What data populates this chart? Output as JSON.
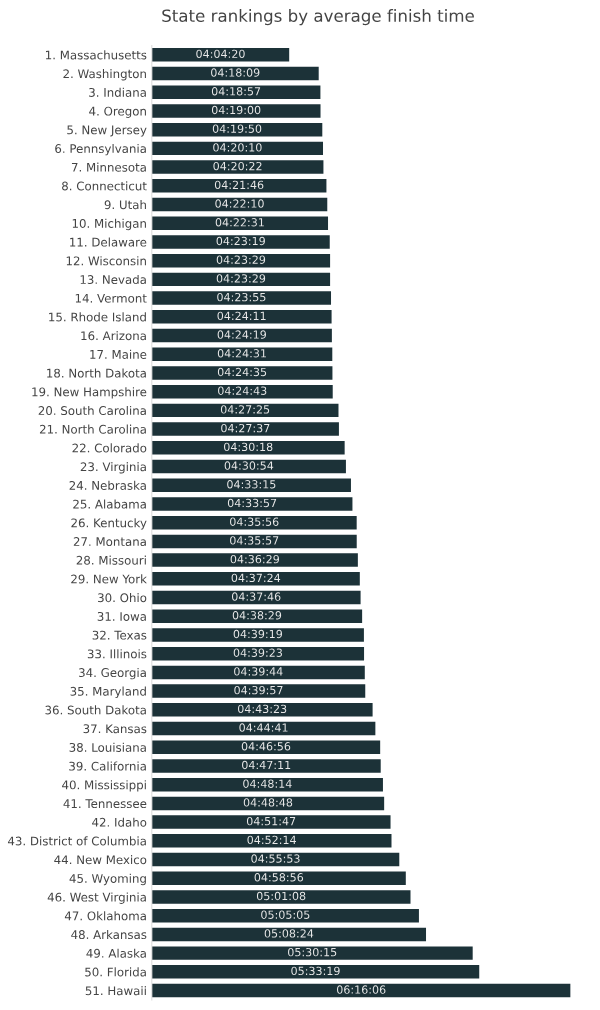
{
  "chart_data": {
    "type": "bar",
    "orientation": "horizontal",
    "title": "State rankings by average finish time",
    "categories": [
      "1. Massachusetts",
      "2. Washington",
      "3. Indiana",
      "4. Oregon",
      "5. New Jersey",
      "6. Pennsylvania",
      "7. Minnesota",
      "8. Connecticut",
      "9. Utah",
      "10. Michigan",
      "11. Delaware",
      "12. Wisconsin",
      "13. Nevada",
      "14. Vermont",
      "15. Rhode Island",
      "16. Arizona",
      "17. Maine",
      "18. North Dakota",
      "19. New Hampshire",
      "20. South Carolina",
      "21. North Carolina",
      "22. Colorado",
      "23. Virginia",
      "24. Nebraska",
      "25. Alabama",
      "26. Kentucky",
      "27. Montana",
      "28. Missouri",
      "29. New York",
      "30. Ohio",
      "31. Iowa",
      "32. Texas",
      "33. Illinois",
      "34. Georgia",
      "35. Maryland",
      "36. South Dakota",
      "37. Kansas",
      "38. Louisiana",
      "39. California",
      "40. Mississippi",
      "41. Tennessee",
      "42. Idaho",
      "43. District of Columbia",
      "44. New Mexico",
      "45. Wyoming",
      "46. West Virginia",
      "47. Oklahoma",
      "48. Arkansas",
      "49. Alaska",
      "50. Florida",
      "51. Hawaii"
    ],
    "values": [
      4.0722,
      4.3025,
      4.3158,
      4.3167,
      4.3306,
      4.3361,
      4.3394,
      4.3628,
      4.3694,
      4.3753,
      4.3886,
      4.3914,
      4.3914,
      4.3986,
      4.4031,
      4.4053,
      4.4086,
      4.4097,
      4.4119,
      4.4569,
      4.4603,
      4.505,
      4.515,
      4.5542,
      4.5658,
      4.5989,
      4.5992,
      4.6081,
      4.6233,
      4.6294,
      4.6414,
      4.6553,
      4.6564,
      4.6622,
      4.6658,
      4.7231,
      4.7447,
      4.7822,
      4.7864,
      4.8039,
      4.8133,
      4.8631,
      4.8706,
      4.9314,
      4.9822,
      5.0189,
      5.0847,
      5.14,
      5.5042,
      5.5553,
      6.2683
    ],
    "value_labels": [
      "04:04:20",
      "04:18:09",
      "04:18:57",
      "04:19:00",
      "04:19:50",
      "04:20:10",
      "04:20:22",
      "04:21:46",
      "04:22:10",
      "04:22:31",
      "04:23:19",
      "04:23:29",
      "04:23:29",
      "04:23:55",
      "04:24:11",
      "04:24:19",
      "04:24:31",
      "04:24:35",
      "04:24:43",
      "04:27:25",
      "04:27:37",
      "04:30:18",
      "04:30:54",
      "04:33:15",
      "04:33:57",
      "04:35:56",
      "04:35:57",
      "04:36:29",
      "04:37:24",
      "04:37:46",
      "04:38:29",
      "04:39:19",
      "04:39:23",
      "04:39:44",
      "04:39:57",
      "04:43:23",
      "04:44:41",
      "04:46:56",
      "04:47:11",
      "04:48:14",
      "04:48:48",
      "04:51:47",
      "04:52:14",
      "04:55:53",
      "04:58:56",
      "05:01:08",
      "05:05:05",
      "05:08:24",
      "05:30:15",
      "05:33:19",
      "06:16:06"
    ],
    "color": "#1c3238",
    "xlim": [
      3,
      6.2683
    ],
    "tick_labels": "y",
    "grid": false,
    "legend": false
  }
}
